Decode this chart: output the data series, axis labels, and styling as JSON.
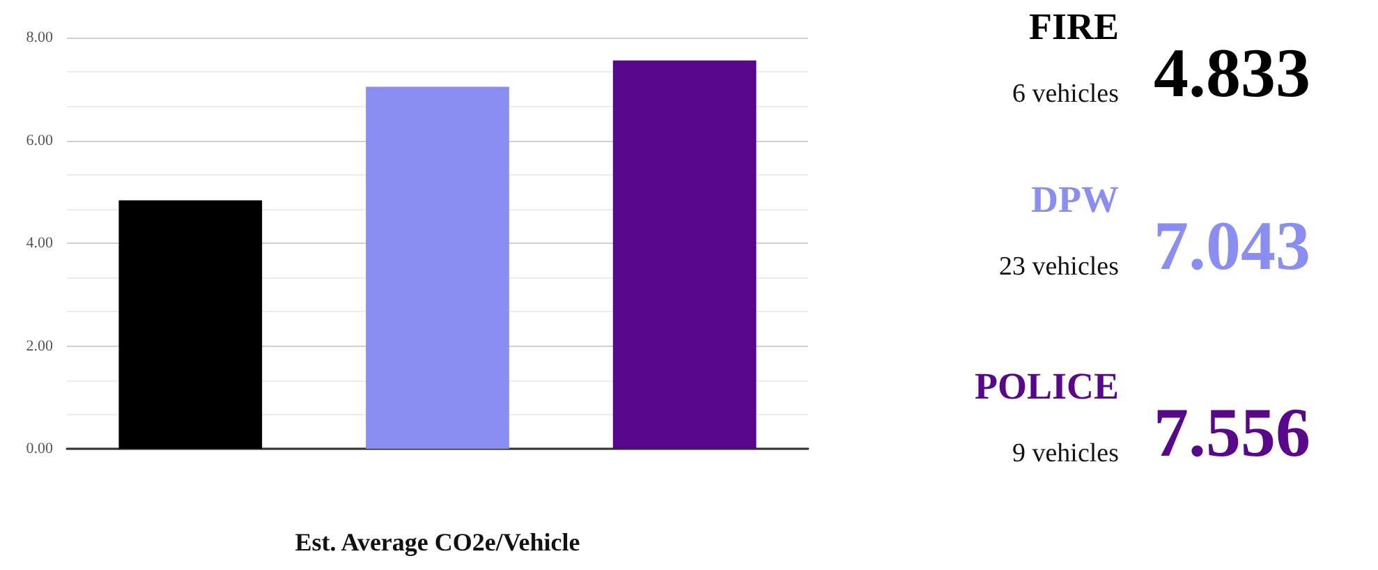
{
  "chart_data": [
    {
      "type": "bar",
      "xlabel": "Est. Average CO2e/Vehicle",
      "categories": [
        null,
        null,
        null
      ],
      "values": [
        4.833,
        7.043,
        7.556
      ],
      "colors": [
        "#000000",
        "#8a8ef0",
        "#58078a"
      ],
      "ylim": [
        0,
        8
      ],
      "yticks": [
        {
          "value": 0,
          "label": "0.00"
        },
        {
          "value": 2,
          "label": "2.00"
        },
        {
          "value": 4,
          "label": "4.00"
        },
        {
          "value": 6,
          "label": "6.00"
        },
        {
          "value": 8,
          "label": "8.00"
        }
      ],
      "grid": "y"
    },
    {
      "type": "other",
      "categories": [
        "FIRE",
        "DPW",
        "POLICE"
      ],
      "values": [
        4.833,
        7.043,
        7.556
      ],
      "colors": [
        "#000000",
        "#8a8ef0",
        "#58078a"
      ],
      "data_labels": true,
      "annotations": [
        "6 vehicles",
        "23 vehicles",
        "9 vehicles"
      ]
    }
  ]
}
